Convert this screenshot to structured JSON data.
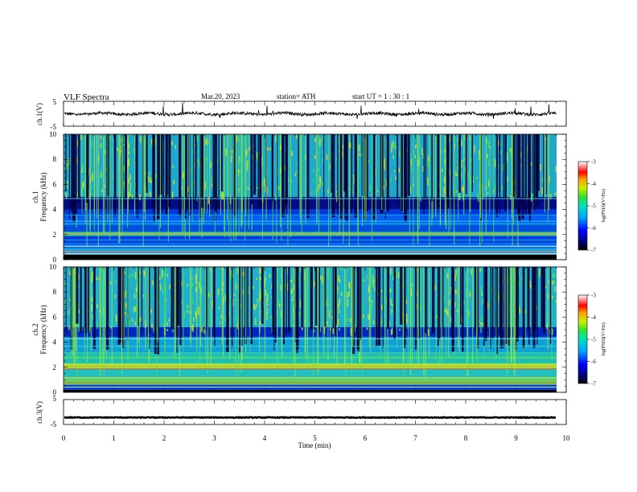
{
  "header": {
    "title": "VLF  Spectra",
    "date": "Mar.20, 2023",
    "station": "station= ATH",
    "start": "start  UT  =    1  : 30 : 1"
  },
  "chart_data": [
    {
      "type": "line",
      "ylabel": "ch.1(V)",
      "ylim": [
        -5,
        5
      ],
      "yticks": [
        "5",
        "-5"
      ],
      "xlim": [
        0,
        10
      ],
      "series_color": "#000000"
    },
    {
      "type": "heatmap",
      "ylabel_line1": "ch.1",
      "ylabel_line2": "Frequency (kHz)",
      "ylim": [
        0,
        10
      ],
      "yticks": [
        "0",
        "2",
        "4",
        "6",
        "8",
        "10"
      ],
      "xlim": [
        0,
        10
      ],
      "data_end_min": 9.8,
      "colorbar": {
        "label": "log(PSD)(V²/Hz)",
        "range": [
          -7,
          -3
        ],
        "ticks": [
          "-3",
          "-4",
          "-5",
          "-6",
          "-7"
        ]
      }
    },
    {
      "type": "heatmap",
      "ylabel_line1": "ch.2",
      "ylabel_line2": "Frequency (kHz)",
      "ylim": [
        0,
        10
      ],
      "yticks": [
        "0",
        "2",
        "4",
        "6",
        "8",
        "10"
      ],
      "xlim": [
        0,
        10
      ],
      "data_end_min": 9.8,
      "colorbar": {
        "label": "log(PSD)(V²/Hz)",
        "range": [
          -7,
          -3
        ],
        "ticks": [
          "-3",
          "-4",
          "-5",
          "-6",
          "-7"
        ]
      }
    },
    {
      "type": "line",
      "ylabel": "ch.3(V)",
      "ylim": [
        -5,
        5
      ],
      "yticks": [
        "5",
        "-5"
      ],
      "xlim": [
        0,
        10
      ],
      "xlabel": "Time  (min)",
      "xticks": [
        "0",
        "1",
        "2",
        "3",
        "4",
        "5",
        "6",
        "7",
        "8",
        "9",
        "10"
      ],
      "series_color": "#000000"
    }
  ]
}
